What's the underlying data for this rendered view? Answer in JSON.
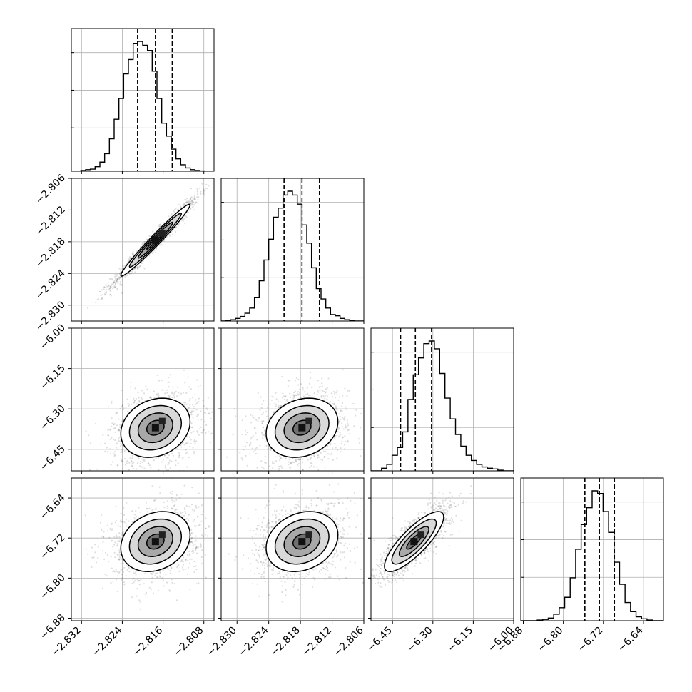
{
  "chart_data": {
    "type": "corner",
    "grid": true,
    "params": [
      {
        "range": [
          -2.834,
          -2.806
        ],
        "quantiles": [
          -2.821,
          -2.8175,
          -2.8142
        ],
        "hist": [
          0,
          0,
          0.006,
          0.012,
          0.016,
          0.035,
          0.07,
          0.135,
          0.25,
          0.4,
          0.56,
          0.75,
          0.86,
          0.985,
          1.0,
          0.97,
          0.93,
          0.77,
          0.56,
          0.37,
          0.27,
          0.17,
          0.095,
          0.05,
          0.025,
          0.012,
          0.006,
          0.002,
          0,
          0
        ],
        "tick_labels": [
          "−2.832",
          "−2.824",
          "−2.816",
          "−2.808"
        ],
        "tick_values": [
          -2.832,
          -2.824,
          -2.816,
          -2.808
        ],
        "mean": -2.8175,
        "std": 0.0034
      },
      {
        "range": [
          -2.833,
          -2.806
        ],
        "quantiles": [
          -2.8211,
          -2.8177,
          -2.8144
        ],
        "hist": [
          0,
          0.005,
          0.01,
          0.02,
          0.035,
          0.06,
          0.1,
          0.18,
          0.31,
          0.47,
          0.63,
          0.8,
          0.87,
          0.97,
          1.0,
          0.97,
          0.9,
          0.74,
          0.6,
          0.41,
          0.25,
          0.17,
          0.1,
          0.05,
          0.04,
          0.02,
          0.01,
          0.004,
          0,
          0
        ],
        "tick_labels": [
          "−2.830",
          "−2.824",
          "−2.818",
          "−2.812",
          "−2.806"
        ],
        "tick_values": [
          -2.83,
          -2.824,
          -2.818,
          -2.812,
          -2.806
        ],
        "mean": -2.8177,
        "std": 0.0034
      },
      {
        "range": [
          -6.53,
          -6.0
        ],
        "quantiles": [
          -6.42,
          -6.365,
          -6.305
        ],
        "hist": [
          0,
          0,
          0.02,
          0.05,
          0.12,
          0.18,
          0.3,
          0.55,
          0.74,
          0.87,
          0.98,
          1.0,
          0.94,
          0.75,
          0.56,
          0.4,
          0.28,
          0.19,
          0.12,
          0.08,
          0.05,
          0.03,
          0.02,
          0.015,
          0.005,
          0,
          0
        ],
        "tick_labels": [
          "−6.45",
          "−6.30",
          "−6.15",
          "−6.00"
        ],
        "tick_values": [
          -6.45,
          -6.3,
          -6.15,
          -6.0
        ],
        "mean": -6.37,
        "std": 0.055
      },
      {
        "range": [
          -6.885,
          -6.6
        ],
        "quantiles": [
          -6.757,
          -6.728,
          -6.698
        ],
        "hist": [
          0,
          0,
          0,
          0.005,
          0.01,
          0.02,
          0.05,
          0.1,
          0.18,
          0.33,
          0.55,
          0.74,
          0.87,
          1.0,
          0.98,
          0.84,
          0.68,
          0.45,
          0.28,
          0.14,
          0.07,
          0.03,
          0.015,
          0.005,
          0,
          0
        ],
        "tick_labels": [
          "−6.88",
          "−6.80",
          "−6.72",
          "−6.64"
        ],
        "tick_values": [
          -6.88,
          -6.8,
          -6.72,
          -6.64
        ],
        "mean": -6.727,
        "std": 0.03
      }
    ],
    "correlations": [
      [
        1.0,
        0.98,
        0.2,
        0.22
      ],
      [
        0.98,
        1.0,
        0.2,
        0.22
      ],
      [
        0.2,
        0.2,
        1.0,
        0.82
      ],
      [
        0.22,
        0.22,
        0.82,
        1.0
      ]
    ],
    "contour_levels_sigma": [
      0.5,
      1.0,
      1.5,
      2.0
    ]
  }
}
